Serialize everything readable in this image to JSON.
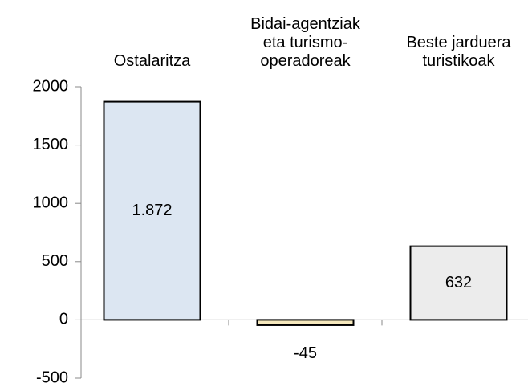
{
  "chart_data": {
    "type": "bar",
    "categories": [
      "Ostalaritza",
      "Bidai-agentziak eta turismo-operadoreak",
      "Beste jarduera turistikoak"
    ],
    "values": [
      1872,
      -45,
      632
    ],
    "value_labels": [
      "1.872",
      "-45",
      "632"
    ],
    "colors": [
      "#dce6f2",
      "#f5e8bd",
      "#ececec"
    ],
    "ylim": [
      -500,
      2000
    ],
    "yticks": [
      -500,
      0,
      500,
      1000,
      1500,
      2000
    ]
  }
}
